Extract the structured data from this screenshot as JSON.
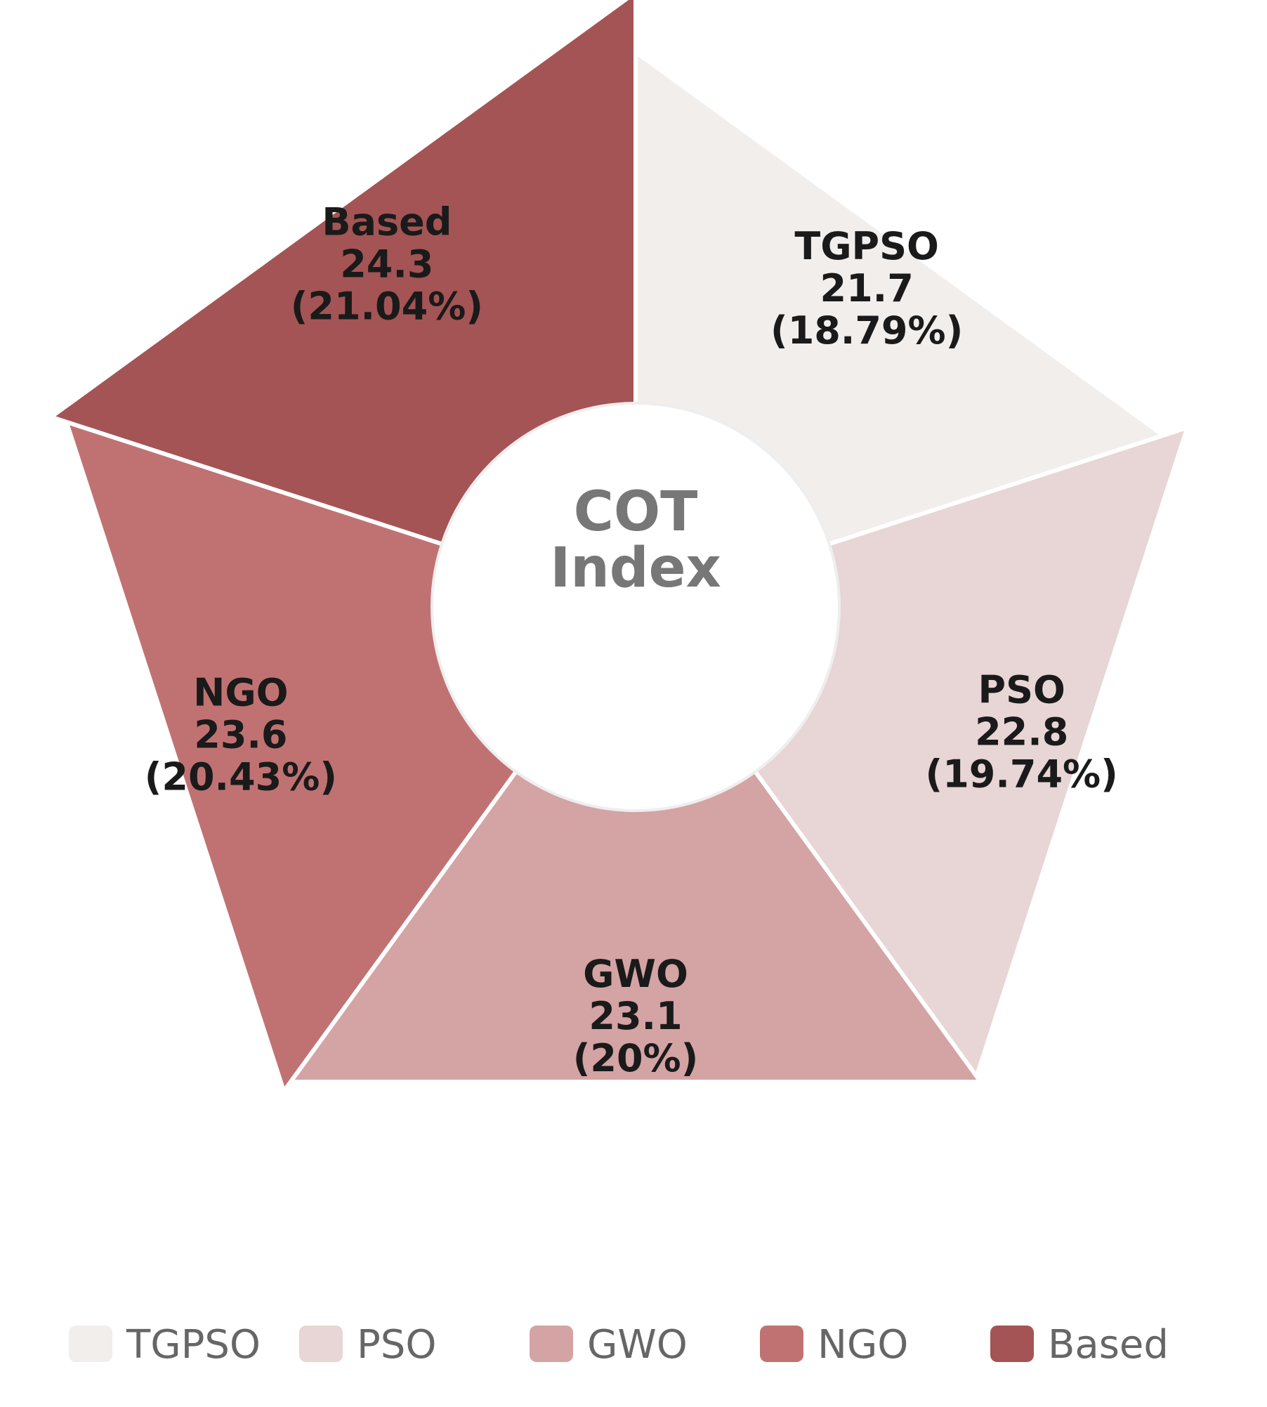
{
  "chart_data": {
    "type": "pie",
    "style": "rose-donut",
    "center_title": [
      "COT",
      "Index"
    ],
    "categories": [
      "TGPSO",
      "PSO",
      "GWO",
      "NGO",
      "Based"
    ],
    "values": [
      21.7,
      22.8,
      23.1,
      23.6,
      24.3
    ],
    "percent_labels": [
      "(18.79%)",
      "(19.74%)",
      "(20%)",
      "(20.43%)",
      "(21.04%)"
    ],
    "value_labels": [
      "21.7",
      "22.8",
      "23.1",
      "23.6",
      "24.3"
    ],
    "colors": [
      "#f2eeec",
      "#e8d5d5",
      "#d4a3a3",
      "#c07272",
      "#a45454"
    ],
    "legend": {
      "position": "bottom",
      "entries": [
        "TGPSO",
        "PSO",
        "GWO",
        "NGO",
        "Based"
      ]
    }
  }
}
